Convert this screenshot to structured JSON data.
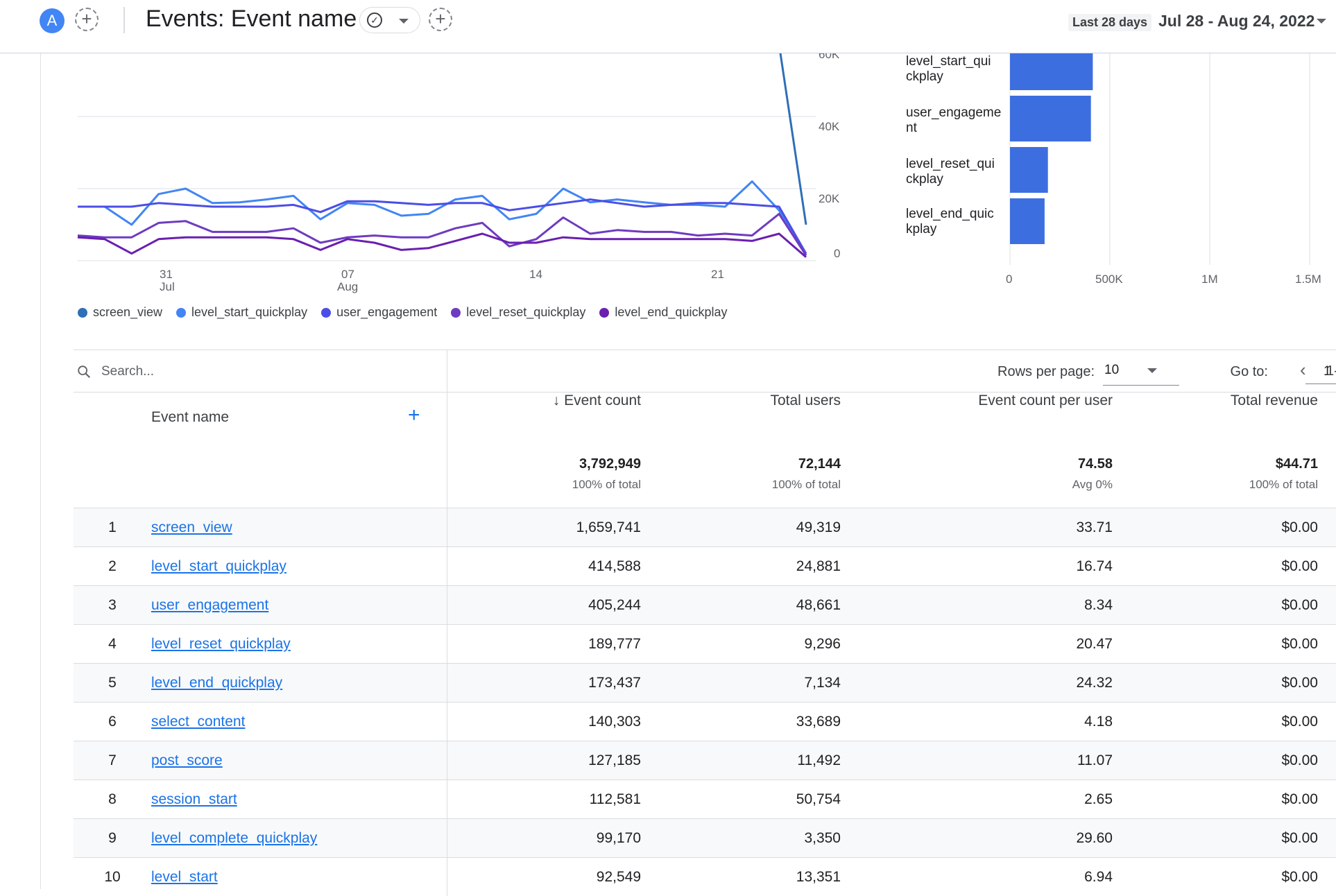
{
  "header": {
    "avatar_letter": "A",
    "title": "Events: Event name",
    "date_range_label": "Last 28 days",
    "date_range": "Jul 28 - Aug 24, 2022"
  },
  "line_chart": {
    "y_ticks": [
      "60K",
      "40K",
      "20K",
      "0"
    ],
    "x_ticks": [
      {
        "day": "31",
        "month": "Jul"
      },
      {
        "day": "07",
        "month": "Aug"
      },
      {
        "day": "14",
        "month": ""
      },
      {
        "day": "21",
        "month": ""
      }
    ]
  },
  "bar_chart": {
    "x_ticks": [
      "0",
      "500K",
      "1M",
      "1.5M"
    ],
    "labels": [
      "level_start_qui\nckplay",
      "user_engageme\nnt",
      "level_reset_qui\nckplay",
      "level_end_quic\nkplay"
    ]
  },
  "legend": [
    {
      "label": "screen_view",
      "color": "#2e6fb7"
    },
    {
      "label": "level_start_quickplay",
      "color": "#4285f4"
    },
    {
      "label": "user_engagement",
      "color": "#4b4ee6"
    },
    {
      "label": "level_reset_quickplay",
      "color": "#6f3bc0"
    },
    {
      "label": "level_end_quickplay",
      "color": "#6a1fb0"
    }
  ],
  "toolbar": {
    "search_placeholder": "Search...",
    "rows_per_page_label": "Rows per page:",
    "rows_per_page_value": "10",
    "goto_label": "Go to:",
    "goto_value": "1",
    "range_fragment": "1-"
  },
  "table": {
    "headers": {
      "event_name": "Event name",
      "event_count": "Event count",
      "total_users": "Total users",
      "event_count_per_user": "Event count per user",
      "total_revenue": "Total revenue"
    },
    "totals": {
      "event_count": "3,792,949",
      "event_count_sub": "100% of total",
      "total_users": "72,144",
      "total_users_sub": "100% of total",
      "event_count_per_user": "74.58",
      "event_count_per_user_sub": "Avg 0%",
      "total_revenue": "$44.71",
      "total_revenue_sub": "100% of total"
    },
    "rows": [
      {
        "idx": "1",
        "name": "screen_view",
        "count": "1,659,741",
        "users": "49,319",
        "per_user": "33.71",
        "revenue": "$0.00"
      },
      {
        "idx": "2",
        "name": "level_start_quickplay",
        "count": "414,588",
        "users": "24,881",
        "per_user": "16.74",
        "revenue": "$0.00"
      },
      {
        "idx": "3",
        "name": "user_engagement",
        "count": "405,244",
        "users": "48,661",
        "per_user": "8.34",
        "revenue": "$0.00"
      },
      {
        "idx": "4",
        "name": "level_reset_quickplay",
        "count": "189,777",
        "users": "9,296",
        "per_user": "20.47",
        "revenue": "$0.00"
      },
      {
        "idx": "5",
        "name": "level_end_quickplay",
        "count": "173,437",
        "users": "7,134",
        "per_user": "24.32",
        "revenue": "$0.00"
      },
      {
        "idx": "6",
        "name": "select_content",
        "count": "140,303",
        "users": "33,689",
        "per_user": "4.18",
        "revenue": "$0.00"
      },
      {
        "idx": "7",
        "name": "post_score",
        "count": "127,185",
        "users": "11,492",
        "per_user": "11.07",
        "revenue": "$0.00"
      },
      {
        "idx": "8",
        "name": "session_start",
        "count": "112,581",
        "users": "50,754",
        "per_user": "2.65",
        "revenue": "$0.00"
      },
      {
        "idx": "9",
        "name": "level_complete_quickplay",
        "count": "99,170",
        "users": "3,350",
        "per_user": "29.60",
        "revenue": "$0.00"
      },
      {
        "idx": "10",
        "name": "level_start",
        "count": "92,549",
        "users": "13,351",
        "per_user": "6.94",
        "revenue": "$0.00"
      }
    ]
  },
  "chart_data": [
    {
      "type": "line",
      "ylim": [
        0,
        60000
      ],
      "x": [
        "Jul 28",
        "Jul 29",
        "Jul 30",
        "Jul 31",
        "Aug 1",
        "Aug 2",
        "Aug 3",
        "Aug 4",
        "Aug 5",
        "Aug 6",
        "Aug 7",
        "Aug 8",
        "Aug 9",
        "Aug 10",
        "Aug 11",
        "Aug 12",
        "Aug 13",
        "Aug 14",
        "Aug 15",
        "Aug 16",
        "Aug 17",
        "Aug 18",
        "Aug 19",
        "Aug 20",
        "Aug 21",
        "Aug 22",
        "Aug 23",
        "Aug 24"
      ],
      "series": [
        {
          "name": "screen_view",
          "color": "#2e6fb7",
          "values": [
            null,
            null,
            null,
            null,
            null,
            null,
            null,
            null,
            null,
            null,
            null,
            null,
            null,
            null,
            null,
            null,
            null,
            null,
            null,
            null,
            null,
            null,
            null,
            null,
            null,
            null,
            60000,
            10000
          ]
        },
        {
          "name": "level_start_quickplay",
          "color": "#4285f4",
          "values": [
            15000,
            15000,
            10000,
            18500,
            20000,
            16000,
            16200,
            17000,
            18000,
            11500,
            16000,
            15500,
            12500,
            13000,
            17000,
            18000,
            11500,
            13000,
            20000,
            16200,
            17000,
            16200,
            15500,
            15500,
            15000,
            22000,
            14000,
            1500
          ]
        },
        {
          "name": "user_engagement",
          "color": "#4b4ee6",
          "values": [
            15000,
            15000,
            15000,
            16000,
            15500,
            15000,
            15000,
            15000,
            15500,
            13500,
            16500,
            16500,
            16000,
            15500,
            16000,
            16000,
            14000,
            15000,
            16000,
            17000,
            16000,
            15000,
            15500,
            16000,
            16000,
            15500,
            15000,
            2000
          ]
        },
        {
          "name": "level_reset_quickplay",
          "color": "#6f3bc0",
          "values": [
            7000,
            6500,
            6500,
            10500,
            11000,
            8000,
            8000,
            8000,
            9000,
            5000,
            6500,
            7000,
            6500,
            6500,
            9000,
            10500,
            4000,
            6000,
            12000,
            7500,
            8500,
            8000,
            8000,
            7000,
            7500,
            7000,
            13000,
            1500
          ]
        },
        {
          "name": "level_end_quickplay",
          "color": "#6a1fb0",
          "values": [
            6500,
            6000,
            2000,
            6000,
            6500,
            6500,
            6500,
            6500,
            6000,
            3000,
            6000,
            5000,
            3000,
            3500,
            5500,
            7500,
            5000,
            5000,
            6500,
            6000,
            6000,
            6000,
            6000,
            6000,
            6000,
            5500,
            7500,
            1000
          ]
        }
      ]
    },
    {
      "type": "bar",
      "orientation": "horizontal",
      "categories": [
        "level_start_quickplay",
        "user_engagement",
        "level_reset_quickplay",
        "level_end_quickplay"
      ],
      "values": [
        414588,
        405244,
        189777,
        173437
      ],
      "xlim": [
        0,
        1500000
      ],
      "color": "#3d6ee0"
    }
  ]
}
